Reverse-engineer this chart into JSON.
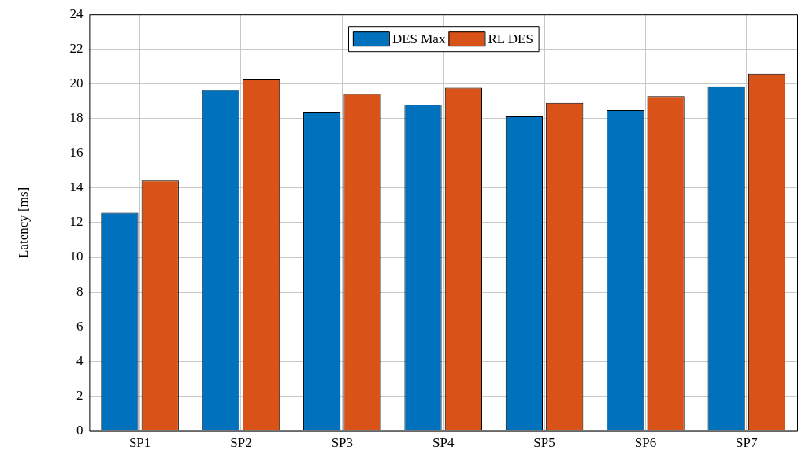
{
  "chart_data": {
    "type": "bar",
    "ylabel": "Latency [ms]",
    "categories": [
      "SP1",
      "SP2",
      "SP3",
      "SP4",
      "SP5",
      "SP6",
      "SP7"
    ],
    "series": [
      {
        "name": "DES Max",
        "color": "#0072bd",
        "values": [
          12.56,
          19.63,
          18.39,
          18.8,
          18.12,
          18.48,
          19.85
        ]
      },
      {
        "name": "RL DES",
        "color": "#d95319",
        "values": [
          14.43,
          20.25,
          19.41,
          19.77,
          18.9,
          19.28,
          20.57
        ]
      }
    ],
    "ylim": [
      0,
      24
    ],
    "yticks": [
      0,
      2,
      4,
      6,
      8,
      10,
      12,
      14,
      16,
      18,
      20,
      22,
      24
    ],
    "grid": true,
    "legend": "top"
  }
}
